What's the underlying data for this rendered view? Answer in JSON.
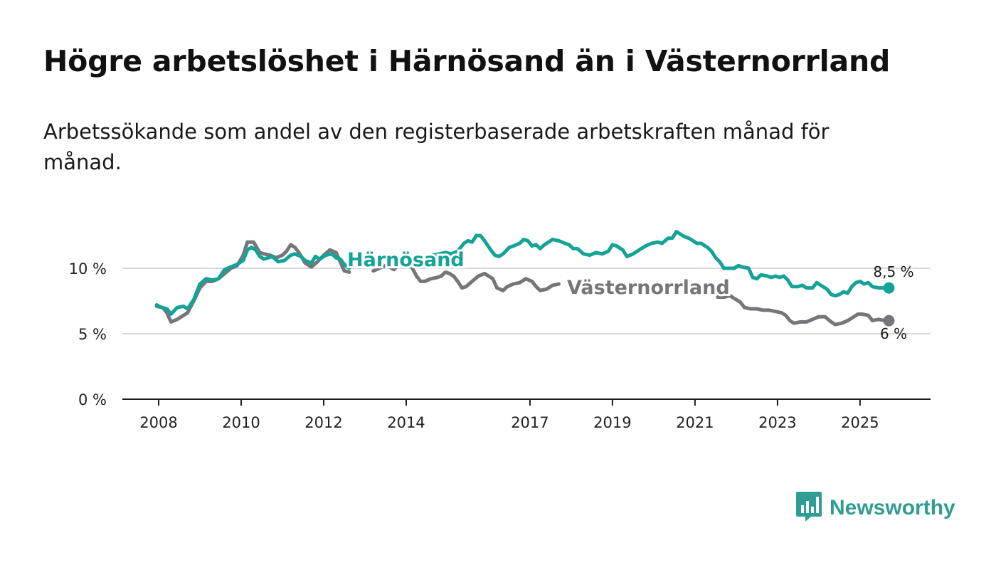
{
  "title": "Högre arbetslöshet i Härnösand än i Västernorrland",
  "subtitle": "Arbetssökande som andel av den registerbaserade arbetskraften månad för månad.",
  "colors": {
    "harnosand": "#14a396",
    "vasternorrland": "#76767a",
    "grid": "#d9d9d9",
    "axis": "#1a1a1a",
    "brand": "#2e9e92"
  },
  "brand": {
    "name": "Newsworthy",
    "icon": "bar-chart-speech-bubble-icon"
  },
  "chart_data": {
    "type": "line",
    "title": "Högre arbetslöshet i Härnösand än i Västernorrland",
    "xlabel": "",
    "ylabel": "",
    "xlim": [
      2008,
      2025.83
    ],
    "ylim": [
      0,
      12.5
    ],
    "x_ticks": [
      {
        "value": 2008,
        "label": "2008"
      },
      {
        "value": 2010,
        "label": "2010"
      },
      {
        "value": 2012,
        "label": "2012"
      },
      {
        "value": 2014,
        "label": "2014"
      },
      {
        "value": 2017,
        "label": "2017"
      },
      {
        "value": 2019,
        "label": "2019"
      },
      {
        "value": 2021,
        "label": "2021"
      },
      {
        "value": 2023,
        "label": "2023"
      },
      {
        "value": 2025,
        "label": "2025"
      }
    ],
    "y_ticks": [
      {
        "value": 0,
        "label": "0 %"
      },
      {
        "value": 5,
        "label": "5 %"
      },
      {
        "value": 10,
        "label": "10 %"
      }
    ],
    "grid": true,
    "series": [
      {
        "name": "Härnösand",
        "color_key": "harnosand",
        "end_label": "8,5 %",
        "points": [
          [
            2007.95,
            7.2
          ],
          [
            2008.08,
            7.0
          ],
          [
            2008.2,
            6.9
          ],
          [
            2008.3,
            6.5
          ],
          [
            2008.45,
            7.0
          ],
          [
            2008.6,
            7.1
          ],
          [
            2008.7,
            6.9
          ],
          [
            2008.85,
            7.6
          ],
          [
            2009.0,
            8.8
          ],
          [
            2009.15,
            9.2
          ],
          [
            2009.3,
            9.1
          ],
          [
            2009.45,
            9.2
          ],
          [
            2009.6,
            9.9
          ],
          [
            2009.75,
            10.1
          ],
          [
            2009.9,
            10.3
          ],
          [
            2010.05,
            10.6
          ],
          [
            2010.15,
            11.4
          ],
          [
            2010.25,
            11.6
          ],
          [
            2010.35,
            11.4
          ],
          [
            2010.45,
            10.9
          ],
          [
            2010.55,
            10.7
          ],
          [
            2010.65,
            10.8
          ],
          [
            2010.75,
            10.9
          ],
          [
            2010.9,
            10.5
          ],
          [
            2011.05,
            10.6
          ],
          [
            2011.2,
            11.0
          ],
          [
            2011.3,
            11.1
          ],
          [
            2011.45,
            10.9
          ],
          [
            2011.55,
            10.6
          ],
          [
            2011.7,
            10.4
          ],
          [
            2011.8,
            10.9
          ],
          [
            2011.9,
            10.7
          ],
          [
            2012.05,
            11.0
          ],
          [
            2012.2,
            11.1
          ],
          [
            2012.3,
            10.8
          ],
          [
            2012.4,
            10.7
          ],
          [
            2012.5,
            10.3
          ],
          [
            2012.62,
            10.0
          ]
        ],
        "points_after_label": [
          [
            2014.4,
            10.3
          ],
          [
            2014.5,
            10.8
          ],
          [
            2014.65,
            11.0
          ],
          [
            2014.8,
            11.1
          ],
          [
            2014.95,
            11.2
          ],
          [
            2015.1,
            11.1
          ],
          [
            2015.25,
            11.3
          ],
          [
            2015.4,
            11.9
          ],
          [
            2015.5,
            12.1
          ],
          [
            2015.6,
            12.0
          ],
          [
            2015.7,
            12.5
          ],
          [
            2015.8,
            12.5
          ],
          [
            2015.9,
            12.1
          ],
          [
            2016.05,
            11.4
          ],
          [
            2016.15,
            11.0
          ],
          [
            2016.25,
            10.9
          ],
          [
            2016.35,
            11.1
          ],
          [
            2016.5,
            11.6
          ],
          [
            2016.6,
            11.7
          ],
          [
            2016.75,
            11.9
          ],
          [
            2016.85,
            12.2
          ],
          [
            2016.95,
            12.1
          ],
          [
            2017.05,
            11.7
          ],
          [
            2017.15,
            11.8
          ],
          [
            2017.25,
            11.5
          ],
          [
            2017.35,
            11.8
          ],
          [
            2017.45,
            12.0
          ],
          [
            2017.55,
            12.2
          ],
          [
            2017.7,
            12.1
          ],
          [
            2017.85,
            11.9
          ],
          [
            2017.95,
            11.8
          ],
          [
            2018.05,
            11.5
          ],
          [
            2018.15,
            11.5
          ],
          [
            2018.3,
            11.1
          ],
          [
            2018.45,
            11.0
          ],
          [
            2018.6,
            11.2
          ],
          [
            2018.75,
            11.1
          ],
          [
            2018.9,
            11.3
          ],
          [
            2019.0,
            11.8
          ],
          [
            2019.1,
            11.7
          ],
          [
            2019.25,
            11.4
          ],
          [
            2019.35,
            10.9
          ],
          [
            2019.5,
            11.1
          ],
          [
            2019.65,
            11.4
          ],
          [
            2019.8,
            11.7
          ],
          [
            2019.95,
            11.9
          ],
          [
            2020.1,
            12.0
          ],
          [
            2020.2,
            11.9
          ],
          [
            2020.35,
            12.3
          ],
          [
            2020.45,
            12.3
          ],
          [
            2020.55,
            12.8
          ],
          [
            2020.65,
            12.6
          ],
          [
            2020.75,
            12.4
          ],
          [
            2020.85,
            12.3
          ],
          [
            2020.95,
            12.1
          ],
          [
            2021.05,
            11.9
          ],
          [
            2021.15,
            11.9
          ],
          [
            2021.3,
            11.6
          ],
          [
            2021.4,
            11.3
          ],
          [
            2021.5,
            10.8
          ],
          [
            2021.6,
            10.5
          ],
          [
            2021.7,
            10.0
          ],
          [
            2021.85,
            10.0
          ],
          [
            2021.95,
            10.0
          ],
          [
            2022.05,
            10.2
          ],
          [
            2022.15,
            10.1
          ],
          [
            2022.3,
            10.0
          ],
          [
            2022.4,
            9.3
          ],
          [
            2022.5,
            9.2
          ],
          [
            2022.6,
            9.5
          ],
          [
            2022.75,
            9.4
          ],
          [
            2022.85,
            9.3
          ],
          [
            2022.95,
            9.4
          ],
          [
            2023.05,
            9.3
          ],
          [
            2023.15,
            9.4
          ],
          [
            2023.25,
            9.1
          ],
          [
            2023.35,
            8.6
          ],
          [
            2023.5,
            8.6
          ],
          [
            2023.6,
            8.7
          ],
          [
            2023.7,
            8.5
          ],
          [
            2023.85,
            8.5
          ],
          [
            2023.95,
            8.9
          ],
          [
            2024.1,
            8.6
          ],
          [
            2024.2,
            8.4
          ],
          [
            2024.3,
            8.0
          ],
          [
            2024.4,
            7.9
          ],
          [
            2024.5,
            8.0
          ],
          [
            2024.6,
            8.2
          ],
          [
            2024.7,
            8.1
          ],
          [
            2024.8,
            8.6
          ],
          [
            2024.9,
            8.9
          ],
          [
            2025.0,
            9.0
          ],
          [
            2025.1,
            8.8
          ],
          [
            2025.2,
            8.9
          ],
          [
            2025.3,
            8.6
          ],
          [
            2025.45,
            8.5
          ],
          [
            2025.6,
            8.5
          ],
          [
            2025.7,
            8.5
          ]
        ],
        "label": "Härnösand"
      },
      {
        "name": "Västernorrland",
        "color_key": "vasternorrland",
        "end_label": "6 %",
        "points": [
          [
            2007.95,
            7.1
          ],
          [
            2008.1,
            7.0
          ],
          [
            2008.2,
            6.6
          ],
          [
            2008.3,
            5.9
          ],
          [
            2008.45,
            6.1
          ],
          [
            2008.55,
            6.3
          ],
          [
            2008.7,
            6.6
          ],
          [
            2008.85,
            7.5
          ],
          [
            2009.0,
            8.5
          ],
          [
            2009.15,
            9.0
          ],
          [
            2009.3,
            9.0
          ],
          [
            2009.45,
            9.2
          ],
          [
            2009.6,
            9.6
          ],
          [
            2009.75,
            10.0
          ],
          [
            2009.9,
            10.2
          ],
          [
            2010.05,
            11.0
          ],
          [
            2010.15,
            12.0
          ],
          [
            2010.3,
            12.0
          ],
          [
            2010.45,
            11.2
          ],
          [
            2010.55,
            11.1
          ],
          [
            2010.7,
            11.0
          ],
          [
            2010.85,
            10.8
          ],
          [
            2011.0,
            11.0
          ],
          [
            2011.1,
            11.3
          ],
          [
            2011.2,
            11.8
          ],
          [
            2011.3,
            11.6
          ],
          [
            2011.4,
            11.2
          ],
          [
            2011.55,
            10.4
          ],
          [
            2011.7,
            10.1
          ],
          [
            2011.85,
            10.5
          ],
          [
            2012.0,
            11.0
          ],
          [
            2012.15,
            11.4
          ],
          [
            2012.3,
            11.2
          ],
          [
            2012.4,
            10.5
          ],
          [
            2012.5,
            9.8
          ],
          [
            2012.62,
            9.7
          ]
        ],
        "points_after_label": [
          [
            2013.2,
            9.8
          ],
          [
            2013.35,
            10.0
          ],
          [
            2013.5,
            10.2
          ],
          [
            2013.6,
            10.1
          ],
          [
            2013.7,
            9.9
          ],
          [
            2013.8,
            10.2
          ],
          [
            2013.9,
            10.4
          ],
          [
            2014.05,
            10.3
          ],
          [
            2014.15,
            10.0
          ],
          [
            2014.25,
            9.4
          ],
          [
            2014.35,
            9.0
          ],
          [
            2014.45,
            9.0
          ],
          [
            2014.6,
            9.2
          ],
          [
            2014.75,
            9.3
          ],
          [
            2014.85,
            9.4
          ],
          [
            2014.95,
            9.7
          ],
          [
            2015.05,
            9.6
          ],
          [
            2015.15,
            9.4
          ],
          [
            2015.25,
            9.0
          ],
          [
            2015.35,
            8.5
          ],
          [
            2015.45,
            8.6
          ],
          [
            2015.6,
            9.0
          ],
          [
            2015.75,
            9.4
          ],
          [
            2015.9,
            9.6
          ],
          [
            2016.0,
            9.4
          ],
          [
            2016.1,
            9.2
          ],
          [
            2016.2,
            8.5
          ],
          [
            2016.35,
            8.3
          ],
          [
            2016.45,
            8.6
          ],
          [
            2016.6,
            8.8
          ],
          [
            2016.75,
            8.9
          ],
          [
            2016.9,
            9.2
          ],
          [
            2017.05,
            9.0
          ],
          [
            2017.15,
            8.6
          ],
          [
            2017.25,
            8.3
          ],
          [
            2017.4,
            8.4
          ],
          [
            2017.55,
            8.7
          ],
          [
            2017.7,
            8.8
          ]
        ],
        "points_tail": [
          [
            2021.55,
            7.8
          ],
          [
            2021.7,
            7.8
          ],
          [
            2021.85,
            7.9
          ],
          [
            2021.95,
            7.7
          ],
          [
            2022.1,
            7.4
          ],
          [
            2022.2,
            7.0
          ],
          [
            2022.35,
            6.9
          ],
          [
            2022.5,
            6.9
          ],
          [
            2022.65,
            6.8
          ],
          [
            2022.8,
            6.8
          ],
          [
            2022.95,
            6.7
          ],
          [
            2023.1,
            6.6
          ],
          [
            2023.2,
            6.4
          ],
          [
            2023.3,
            6.0
          ],
          [
            2023.4,
            5.8
          ],
          [
            2023.55,
            5.9
          ],
          [
            2023.7,
            5.9
          ],
          [
            2023.85,
            6.1
          ],
          [
            2024.0,
            6.3
          ],
          [
            2024.15,
            6.3
          ],
          [
            2024.3,
            5.9
          ],
          [
            2024.4,
            5.7
          ],
          [
            2024.55,
            5.8
          ],
          [
            2024.7,
            6.0
          ],
          [
            2024.85,
            6.3
          ],
          [
            2024.95,
            6.5
          ],
          [
            2025.05,
            6.5
          ],
          [
            2025.2,
            6.4
          ],
          [
            2025.3,
            6.0
          ],
          [
            2025.45,
            6.1
          ],
          [
            2025.6,
            6.0
          ],
          [
            2025.7,
            6.0
          ]
        ],
        "label": "Västernorrland"
      }
    ]
  }
}
